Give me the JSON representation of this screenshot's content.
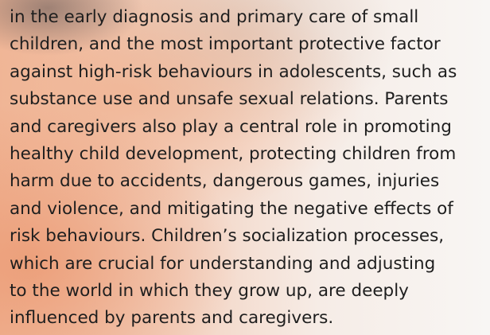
{
  "paragraph": {
    "lines": [
      "in the early diagnosis and primary care of small",
      "children, and the most important protective factor",
      "against high-risk behaviours in adolescents, such as",
      "substance use and unsafe sexual relations. Parents",
      "and caregivers also play a central role in promoting",
      "healthy child development, protecting children from",
      "harm due to accidents, dangerous games, injuries",
      "and violence, and mitigating the negative effects of",
      "risk behaviours. Children’s socialization processes,",
      "which are crucial for understanding and adjusting",
      "to the world in which they grow up, are deeply",
      "influenced by parents and caregivers."
    ]
  }
}
